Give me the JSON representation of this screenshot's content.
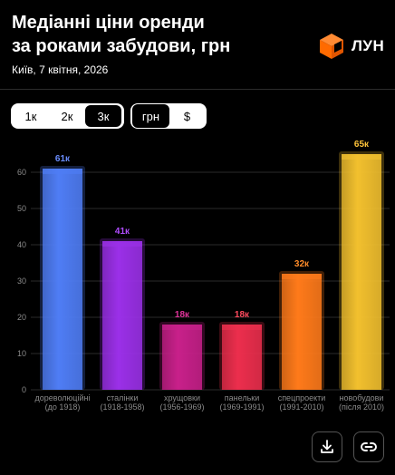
{
  "header": {
    "title_line1": "Медіанні ціни оренди",
    "title_line2": "за роками забудови, грн",
    "subtitle": "Київ, 7 квітня, 2026",
    "logo_text": "ЛУН"
  },
  "controls": {
    "range_options": [
      "1к",
      "2к",
      "3к"
    ],
    "range_selected": "3к",
    "currency_options": [
      "грн",
      "$"
    ],
    "currency_selected": "грн"
  },
  "colors": {
    "background": "#000000",
    "logo": "#ff6a00",
    "grid": "#2a2a2a"
  },
  "icons": {
    "download": "download-icon",
    "link": "link-icon"
  },
  "chart_data": {
    "type": "bar",
    "categories": [
      [
        "дореволюційні",
        "(до 1918)"
      ],
      [
        "сталінки",
        "(1918-1958)"
      ],
      [
        "хрущовки",
        "(1956-1969)"
      ],
      [
        "панельки",
        "(1969-1991)"
      ],
      [
        "спецпроекти",
        "(1991-2010)"
      ],
      [
        "новобудови",
        "(після 2010)"
      ]
    ],
    "values": [
      61,
      41,
      18,
      18,
      32,
      65
    ],
    "value_labels": [
      "61к",
      "41к",
      "18к",
      "18к",
      "32к",
      "65к"
    ],
    "bar_colors": [
      "#4f7df5",
      "#9b30e8",
      "#c8208a",
      "#ec2e4d",
      "#ff7a1a",
      "#f2c02e"
    ],
    "label_colors": [
      "#6a8dff",
      "#b04cff",
      "#e0339a",
      "#ff4a5e",
      "#ff8c2a",
      "#ffc43a"
    ],
    "y_ticks": [
      0,
      10,
      20,
      30,
      40,
      50,
      60
    ],
    "ylim": [
      0,
      70
    ],
    "grid": true
  }
}
